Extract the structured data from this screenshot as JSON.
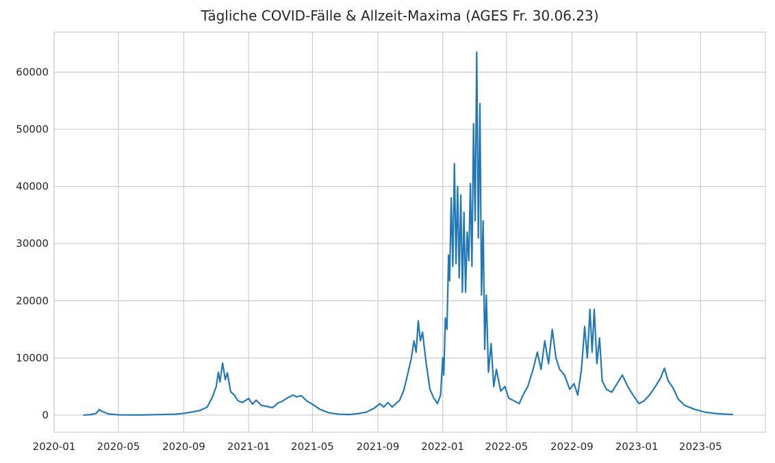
{
  "chart_data": {
    "type": "line",
    "title": "Tägliche COVID-Fälle & Allzeit-Maxima (AGES Fr. 30.06.23)",
    "xlabel": "",
    "ylabel": "",
    "x_ticks": [
      "2020-01",
      "2020-05",
      "2020-09",
      "2021-01",
      "2021-05",
      "2021-09",
      "2022-01",
      "2022-05",
      "2022-09",
      "2023-01",
      "2023-05"
    ],
    "y_ticks": [
      0,
      10000,
      20000,
      30000,
      40000,
      50000,
      60000
    ],
    "xlim": [
      "2020-01-01",
      "2023-08-31"
    ],
    "ylim": [
      -3000,
      67000
    ],
    "grid": true,
    "colors": {
      "line": "#2178b4",
      "grid": "#cccccc",
      "axes": "#cccccc",
      "background": "#ffffff"
    },
    "series": [
      {
        "values": [
          [
            "2020-02-26",
            0
          ],
          [
            "2020-03-10",
            80
          ],
          [
            "2020-03-20",
            300
          ],
          [
            "2020-03-26",
            950
          ],
          [
            "2020-04-01",
            600
          ],
          [
            "2020-04-12",
            200
          ],
          [
            "2020-05-01",
            40
          ],
          [
            "2020-06-15",
            20
          ],
          [
            "2020-07-15",
            90
          ],
          [
            "2020-08-15",
            150
          ],
          [
            "2020-09-01",
            300
          ],
          [
            "2020-09-20",
            600
          ],
          [
            "2020-10-01",
            800
          ],
          [
            "2020-10-15",
            1400
          ],
          [
            "2020-10-25",
            3200
          ],
          [
            "2020-11-01",
            5000
          ],
          [
            "2020-11-05",
            7500
          ],
          [
            "2020-11-08",
            5800
          ],
          [
            "2020-11-13",
            9100
          ],
          [
            "2020-11-18",
            6200
          ],
          [
            "2020-11-22",
            7400
          ],
          [
            "2020-11-28",
            4100
          ],
          [
            "2020-12-05",
            3500
          ],
          [
            "2020-12-12",
            2500
          ],
          [
            "2020-12-20",
            2200
          ],
          [
            "2021-01-01",
            2900
          ],
          [
            "2021-01-08",
            1900
          ],
          [
            "2021-01-15",
            2600
          ],
          [
            "2021-01-25",
            1700
          ],
          [
            "2021-02-05",
            1500
          ],
          [
            "2021-02-15",
            1300
          ],
          [
            "2021-02-25",
            2100
          ],
          [
            "2021-03-05",
            2400
          ],
          [
            "2021-03-15",
            3000
          ],
          [
            "2021-03-25",
            3500
          ],
          [
            "2021-04-01",
            3200
          ],
          [
            "2021-04-10",
            3400
          ],
          [
            "2021-04-20",
            2500
          ],
          [
            "2021-05-01",
            1900
          ],
          [
            "2021-05-15",
            1000
          ],
          [
            "2021-06-01",
            400
          ],
          [
            "2021-06-20",
            150
          ],
          [
            "2021-07-10",
            100
          ],
          [
            "2021-07-25",
            250
          ],
          [
            "2021-08-10",
            500
          ],
          [
            "2021-08-25",
            1200
          ],
          [
            "2021-09-05",
            2000
          ],
          [
            "2021-09-12",
            1400
          ],
          [
            "2021-09-20",
            2200
          ],
          [
            "2021-09-28",
            1400
          ],
          [
            "2021-10-05",
            2000
          ],
          [
            "2021-10-12",
            2600
          ],
          [
            "2021-10-20",
            4400
          ],
          [
            "2021-10-28",
            7500
          ],
          [
            "2021-11-03",
            10000
          ],
          [
            "2021-11-08",
            13000
          ],
          [
            "2021-11-12",
            11000
          ],
          [
            "2021-11-16",
            16500
          ],
          [
            "2021-11-20",
            13000
          ],
          [
            "2021-11-24",
            14500
          ],
          [
            "2021-12-01",
            9000
          ],
          [
            "2021-12-08",
            4500
          ],
          [
            "2021-12-15",
            3000
          ],
          [
            "2021-12-22",
            2000
          ],
          [
            "2021-12-28",
            3500
          ],
          [
            "2022-01-01",
            10000
          ],
          [
            "2022-01-03",
            7000
          ],
          [
            "2022-01-06",
            17000
          ],
          [
            "2022-01-09",
            15000
          ],
          [
            "2022-01-12",
            28000
          ],
          [
            "2022-01-14",
            23500
          ],
          [
            "2022-01-17",
            38000
          ],
          [
            "2022-01-20",
            26000
          ],
          [
            "2022-01-23",
            44000
          ],
          [
            "2022-01-26",
            26500
          ],
          [
            "2022-01-29",
            40000
          ],
          [
            "2022-02-01",
            24000
          ],
          [
            "2022-02-04",
            38500
          ],
          [
            "2022-02-07",
            21500
          ],
          [
            "2022-02-10",
            35500
          ],
          [
            "2022-02-13",
            21500
          ],
          [
            "2022-02-16",
            32000
          ],
          [
            "2022-02-19",
            27000
          ],
          [
            "2022-02-22",
            40500
          ],
          [
            "2022-02-25",
            26000
          ],
          [
            "2022-02-28",
            51000
          ],
          [
            "2022-03-03",
            34000
          ],
          [
            "2022-03-06",
            63500
          ],
          [
            "2022-03-09",
            31000
          ],
          [
            "2022-03-12",
            54500
          ],
          [
            "2022-03-15",
            21000
          ],
          [
            "2022-03-18",
            34000
          ],
          [
            "2022-03-21",
            11500
          ],
          [
            "2022-03-24",
            21000
          ],
          [
            "2022-03-28",
            7500
          ],
          [
            "2022-04-02",
            12500
          ],
          [
            "2022-04-07",
            5000
          ],
          [
            "2022-04-12",
            8000
          ],
          [
            "2022-04-20",
            4200
          ],
          [
            "2022-04-28",
            5000
          ],
          [
            "2022-05-05",
            3000
          ],
          [
            "2022-05-15",
            2500
          ],
          [
            "2022-05-25",
            2000
          ],
          [
            "2022-06-01",
            3500
          ],
          [
            "2022-06-10",
            5000
          ],
          [
            "2022-06-20",
            8000
          ],
          [
            "2022-06-28",
            11000
          ],
          [
            "2022-07-05",
            8000
          ],
          [
            "2022-07-12",
            13000
          ],
          [
            "2022-07-19",
            9000
          ],
          [
            "2022-07-26",
            15000
          ],
          [
            "2022-08-02",
            10000
          ],
          [
            "2022-08-09",
            8000
          ],
          [
            "2022-08-18",
            7000
          ],
          [
            "2022-08-28",
            4500
          ],
          [
            "2022-09-05",
            5500
          ],
          [
            "2022-09-12",
            3500
          ],
          [
            "2022-09-19",
            8000
          ],
          [
            "2022-09-25",
            15500
          ],
          [
            "2022-09-30",
            10000
          ],
          [
            "2022-10-05",
            18500
          ],
          [
            "2022-10-09",
            11000
          ],
          [
            "2022-10-13",
            18500
          ],
          [
            "2022-10-18",
            9000
          ],
          [
            "2022-10-23",
            13500
          ],
          [
            "2022-10-28",
            6000
          ],
          [
            "2022-11-05",
            4500
          ],
          [
            "2022-11-15",
            4000
          ],
          [
            "2022-11-25",
            5500
          ],
          [
            "2022-12-05",
            7000
          ],
          [
            "2022-12-15",
            5000
          ],
          [
            "2022-12-25",
            3500
          ],
          [
            "2023-01-05",
            2000
          ],
          [
            "2023-01-15",
            2500
          ],
          [
            "2023-01-25",
            3500
          ],
          [
            "2023-02-05",
            5000
          ],
          [
            "2023-02-15",
            6500
          ],
          [
            "2023-02-22",
            8200
          ],
          [
            "2023-03-01",
            6000
          ],
          [
            "2023-03-10",
            4800
          ],
          [
            "2023-03-20",
            2800
          ],
          [
            "2023-04-01",
            1700
          ],
          [
            "2023-04-20",
            1000
          ],
          [
            "2023-05-10",
            500
          ],
          [
            "2023-06-01",
            250
          ],
          [
            "2023-06-30",
            100
          ]
        ]
      }
    ]
  }
}
